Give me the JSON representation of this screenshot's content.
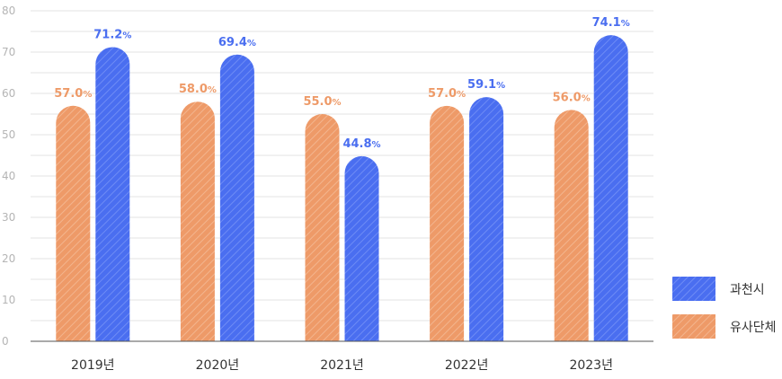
{
  "chart_data": {
    "type": "bar",
    "categories": [
      "2019년",
      "2020년",
      "2021년",
      "2022년",
      "2023년"
    ],
    "series": [
      {
        "name": "유사단체",
        "values": [
          57.0,
          58.0,
          55.0,
          57.0,
          56.0
        ],
        "labels": [
          "57.0",
          "58.0",
          "55.0",
          "57.0",
          "56.0"
        ],
        "color": "#ee9a68"
      },
      {
        "name": "과천시",
        "values": [
          71.2,
          69.4,
          44.8,
          59.1,
          74.1
        ],
        "labels": [
          "71.2",
          "69.4",
          "44.8",
          "59.1",
          "74.1"
        ],
        "color": "#4a6ef0"
      }
    ],
    "value_suffix": "%",
    "yticks": [
      "0",
      "10",
      "20",
      "30",
      "40",
      "50",
      "60",
      "70",
      "80"
    ],
    "ylim": [
      0,
      80
    ],
    "grid": true,
    "legend_position": "bottom-right",
    "title": "",
    "xlabel": "",
    "ylabel": ""
  }
}
